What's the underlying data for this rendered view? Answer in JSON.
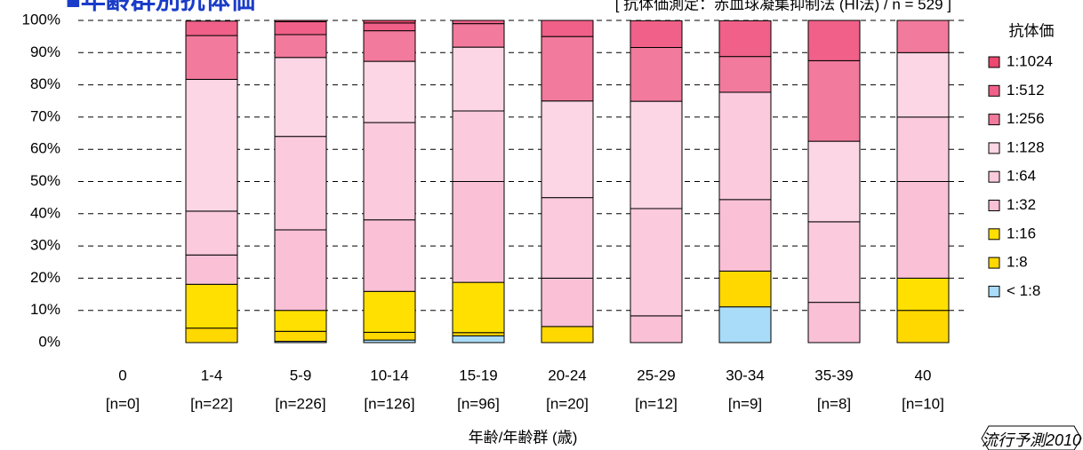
{
  "chart_data": {
    "type": "stacked_bar",
    "title": "■年齢群別抗体価",
    "subtitle": "[ 抗体価測定：赤血球凝集抑制法 (HI法) / n = 529 ]",
    "x_label": "年齢/年齢群 (歳)",
    "legend_title": "抗体価",
    "badge": "流行予測2010",
    "categories": [
      "0",
      "1-4",
      "5-9",
      "10-14",
      "15-19",
      "20-24",
      "25-29",
      "30-34",
      "35-39",
      "40"
    ],
    "sample_sizes": [
      "[n=0]",
      "[n=22]",
      "[n=226]",
      "[n=126]",
      "[n=96]",
      "[n=20]",
      "[n=12]",
      "[n=9]",
      "[n=8]",
      "[n=10]"
    ],
    "series": [
      {
        "name": "< 1:8",
        "color": "#a8dcf8",
        "values": [
          0,
          0,
          0.4,
          0.8,
          2.1,
          0,
          0,
          11.1,
          0,
          0
        ]
      },
      {
        "name": "1:8",
        "color": "#ffd800",
        "values": [
          0,
          4.5,
          3.1,
          2.4,
          1.0,
          5,
          0,
          11.1,
          0,
          10
        ]
      },
      {
        "name": "1:16",
        "color": "#ffe000",
        "values": [
          0,
          13.6,
          6.5,
          12.7,
          15.6,
          0,
          0,
          0,
          0,
          10
        ]
      },
      {
        "name": "1:32",
        "color": "#f9c0d6",
        "values": [
          0,
          9.1,
          25,
          22.2,
          31.3,
          15,
          8.3,
          22.2,
          12.5,
          30
        ]
      },
      {
        "name": "1:64",
        "color": "#fbcadd",
        "values": [
          0,
          13.6,
          29,
          30.2,
          21.9,
          25,
          33.3,
          33.3,
          25,
          20
        ]
      },
      {
        "name": "1:128",
        "color": "#fcd6e4",
        "values": [
          0,
          40.9,
          24.5,
          19,
          19.8,
          30,
          33.3,
          0,
          25,
          20
        ]
      },
      {
        "name": "1:256",
        "color": "#f27a9c",
        "values": [
          0,
          13.6,
          7.1,
          9.5,
          7.3,
          20,
          16.7,
          11.1,
          25,
          10
        ]
      },
      {
        "name": "1:512",
        "color": "#f06088",
        "values": [
          0,
          4.5,
          4.0,
          2.4,
          1.0,
          5,
          8.3,
          11.1,
          12.5,
          0
        ]
      },
      {
        "name": "1:1024",
        "color": "#ec4870",
        "values": [
          0,
          0,
          0.4,
          0.8,
          0,
          0,
          0,
          0,
          0,
          0
        ]
      }
    ],
    "ylim": [
      0,
      100
    ],
    "yticks": [
      {
        "value": 0,
        "label": "0%"
      },
      {
        "value": 10,
        "label": "10%"
      },
      {
        "value": 20,
        "label": "20%"
      },
      {
        "value": 30,
        "label": "30%"
      },
      {
        "value": 40,
        "label": "40%"
      },
      {
        "value": 50,
        "label": "50%"
      },
      {
        "value": 60,
        "label": "60%"
      },
      {
        "value": 70,
        "label": "70%"
      },
      {
        "value": 80,
        "label": "80%"
      },
      {
        "value": 90,
        "label": "90%"
      },
      {
        "value": 100,
        "label": "100%"
      }
    ],
    "grid": true
  }
}
